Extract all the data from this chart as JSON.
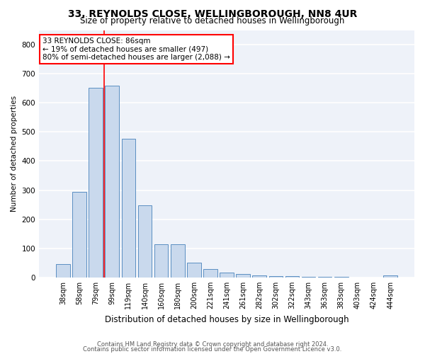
{
  "title": "33, REYNOLDS CLOSE, WELLINGBOROUGH, NN8 4UR",
  "subtitle": "Size of property relative to detached houses in Wellingborough",
  "xlabel": "Distribution of detached houses by size in Wellingborough",
  "ylabel": "Number of detached properties",
  "categories": [
    "38sqm",
    "58sqm",
    "79sqm",
    "99sqm",
    "119sqm",
    "140sqm",
    "160sqm",
    "180sqm",
    "200sqm",
    "221sqm",
    "241sqm",
    "261sqm",
    "282sqm",
    "302sqm",
    "322sqm",
    "343sqm",
    "363sqm",
    "383sqm",
    "403sqm",
    "424sqm",
    "444sqm"
  ],
  "values": [
    47,
    295,
    651,
    660,
    477,
    248,
    113,
    113,
    52,
    28,
    18,
    13,
    8,
    5,
    4,
    3,
    2,
    2,
    1,
    1,
    8
  ],
  "bar_color": "#c9d9ed",
  "bar_edge_color": "#5a8fc2",
  "vline_x_index": 2.5,
  "annotation_text": "33 REYNOLDS CLOSE: 86sqm\n← 19% of detached houses are smaller (497)\n80% of semi-detached houses are larger (2,088) →",
  "annotation_box_color": "white",
  "annotation_box_edge_color": "red",
  "vline_color": "red",
  "ylim": [
    0,
    850
  ],
  "yticks": [
    0,
    100,
    200,
    300,
    400,
    500,
    600,
    700,
    800
  ],
  "footer1": "Contains HM Land Registry data © Crown copyright and database right 2024.",
  "footer2": "Contains public sector information licensed under the Open Government Licence v3.0.",
  "bg_color": "#eef2f9",
  "grid_color": "white",
  "title_fontsize": 10,
  "subtitle_fontsize": 8.5,
  "xlabel_fontsize": 8.5,
  "ylabel_fontsize": 7.5,
  "tick_fontsize": 7,
  "annotation_fontsize": 7.5,
  "footer_fontsize": 6
}
